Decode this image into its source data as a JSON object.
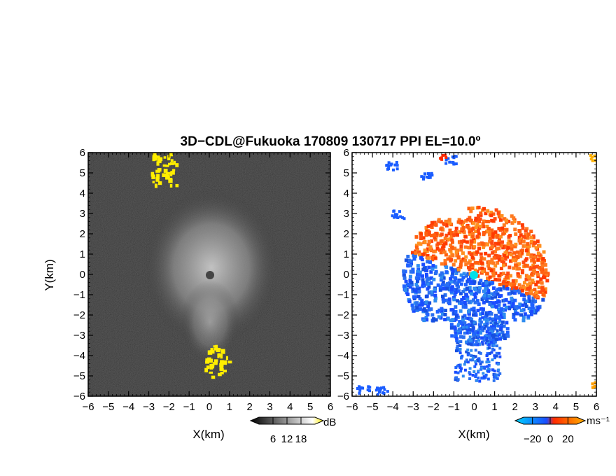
{
  "title": "3D−CDL@Fukuoka 170809 130717 PPI EL=10.0º",
  "chart_data": [
    {
      "type": "heatmap",
      "panel": "left",
      "quantity": "dB",
      "xlabel": "X(km)",
      "ylabel": "Y(km)",
      "xlim": [
        -6,
        6
      ],
      "ylim": [
        -6,
        6
      ],
      "xticks": [
        "−6",
        "−5",
        "−4",
        "−3",
        "−2",
        "−1",
        "0",
        "1",
        "2",
        "3",
        "4",
        "5",
        "6"
      ],
      "yticks": [
        "6",
        "5",
        "4",
        "3",
        "2",
        "1",
        "0",
        "−1",
        "−2",
        "−3",
        "−4",
        "−5",
        "−6"
      ],
      "colormap": [
        "#000000",
        "#ffffff",
        "#ffee00"
      ],
      "colorbar": {
        "unit": "dB",
        "ticks": [
          "6",
          "12",
          "18"
        ],
        "range": [
          0,
          24
        ]
      },
      "features": [
        {
          "label": "bright echo cluster",
          "x": 0,
          "y": 0,
          "radius_km": 2.4
        },
        {
          "label": "strong returns (yellow)",
          "x": 0.3,
          "y": -4.2
        },
        {
          "label": "strong returns (yellow)",
          "x": -2.3,
          "y": 5.2
        }
      ]
    },
    {
      "type": "heatmap",
      "panel": "right",
      "quantity": "Doppler velocity",
      "xlabel": "X(km)",
      "ylabel": "",
      "xlim": [
        -6,
        6
      ],
      "ylim": [
        -6,
        6
      ],
      "xticks": [
        "−6",
        "−5",
        "−4",
        "−3",
        "−2",
        "−1",
        "0",
        "1",
        "2",
        "3",
        "4",
        "5",
        "6"
      ],
      "yticks": [
        "6",
        "5",
        "4",
        "3",
        "2",
        "1",
        "0",
        "−1",
        "−2",
        "−3",
        "−4",
        "−5",
        "−6"
      ],
      "colormap": [
        "#00c8ff",
        "#1a5cff",
        "#ff2a00",
        "#ffa000"
      ],
      "colorbar": {
        "unit": "ms⁻¹",
        "ticks": [
          "−20",
          "0",
          "20"
        ],
        "range": [
          -30,
          30
        ]
      },
      "features": [
        {
          "label": "approaching (blue)",
          "x": -1.2,
          "y": -1.5
        },
        {
          "label": "receding (orange-red)",
          "x": 1.5,
          "y": 1.5
        },
        {
          "label": "lidar site",
          "x": 0,
          "y": 0
        }
      ]
    }
  ]
}
